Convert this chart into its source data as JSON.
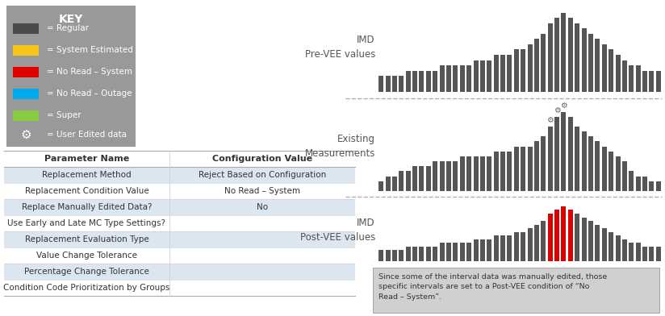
{
  "key_bg": "#999999",
  "key_title": "KEY",
  "key_items": [
    {
      "color": "#4a4a4a",
      "label": "= Regular"
    },
    {
      "color": "#f5c518",
      "label": "= System Estimated"
    },
    {
      "color": "#e00000",
      "label": "= No Read – System"
    },
    {
      "color": "#00aaee",
      "label": "= No Read – Outage"
    },
    {
      "color": "#88cc44",
      "label": "= Super"
    }
  ],
  "key_gear_label": "= User Edited data",
  "table_headers": [
    "Parameter Name",
    "Configuration Value"
  ],
  "table_rows": [
    [
      "Replacement Method",
      "Reject Based on Configuration"
    ],
    [
      "Replacement Condition Value",
      "No Read – System"
    ],
    [
      "Replace Manually Edited Data?",
      "No"
    ],
    [
      "Use Early and Late MC Type Settings?",
      ""
    ],
    [
      "Replacement Evaluation Type",
      ""
    ],
    [
      "Value Change Tolerance",
      ""
    ],
    [
      "Percentage Change Tolerance",
      ""
    ],
    [
      "Condition Code Prioritization by Groups",
      ""
    ]
  ],
  "chart1_label": "IMD\nPre-VEE values",
  "chart2_label": "Existing\nMeasurements",
  "chart3_label": "IMD\nPost-VEE values",
  "bar_color_normal": "#555555",
  "bar_color_red": "#dd0000",
  "note_text": "Since some of the interval data was manually edited, those\nspecific intervals are set to a Post-VEE condition of “No\nRead – System”.",
  "chart1_values": [
    3,
    3,
    3,
    3,
    4,
    4,
    4,
    4,
    4,
    5,
    5,
    5,
    5,
    5,
    6,
    6,
    6,
    7,
    7,
    7,
    8,
    8,
    9,
    10,
    11,
    13,
    14,
    15,
    14,
    13,
    12,
    11,
    10,
    9,
    8,
    7,
    6,
    5,
    5,
    4,
    4,
    4
  ],
  "chart2_values": [
    2,
    3,
    3,
    4,
    4,
    5,
    5,
    5,
    6,
    6,
    6,
    6,
    7,
    7,
    7,
    7,
    7,
    8,
    8,
    8,
    9,
    9,
    9,
    10,
    11,
    13,
    15,
    16,
    15,
    13,
    12,
    11,
    10,
    9,
    8,
    7,
    6,
    4,
    3,
    3,
    2,
    2
  ],
  "chart3_values": [
    3,
    3,
    3,
    3,
    4,
    4,
    4,
    4,
    4,
    5,
    5,
    5,
    5,
    5,
    6,
    6,
    6,
    7,
    7,
    7,
    8,
    8,
    9,
    10,
    11,
    13,
    14,
    15,
    14,
    13,
    12,
    11,
    10,
    9,
    8,
    7,
    6,
    5,
    5,
    4,
    4,
    4
  ],
  "chart3_red_indices": [
    25,
    26,
    27,
    28
  ],
  "gear_bar_indices": [
    25,
    26,
    27
  ]
}
